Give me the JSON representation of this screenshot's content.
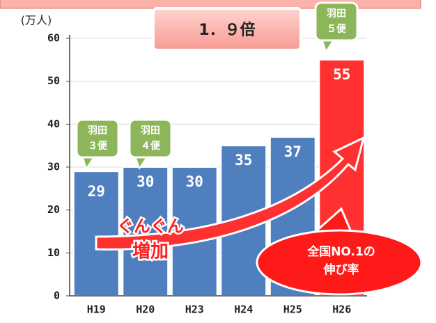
{
  "chart_data": {
    "type": "bar",
    "y_axis_label": "(万人)",
    "categories": [
      "H19",
      "H20",
      "H23",
      "H24",
      "H25",
      "H26"
    ],
    "values": [
      29,
      30,
      30,
      35,
      37,
      55
    ],
    "colors": [
      "#4f7fbf",
      "#4f7fbf",
      "#4f7fbf",
      "#4f7fbf",
      "#4f7fbf",
      "#ff3030"
    ],
    "ylim": [
      0,
      60
    ],
    "yticks": [
      0,
      10,
      20,
      30,
      40,
      50,
      60
    ],
    "grid": true,
    "ratio_box": "1．９倍",
    "callouts": [
      {
        "lines": [
          "羽田",
          "３便"
        ]
      },
      {
        "lines": [
          "羽田",
          "４便"
        ]
      },
      {
        "lines": [
          "羽田",
          "５便"
        ]
      }
    ],
    "arrow_text": [
      "ぐんぐん",
      "増加"
    ],
    "badge": [
      "全国NO.1の",
      "伸び率"
    ]
  }
}
